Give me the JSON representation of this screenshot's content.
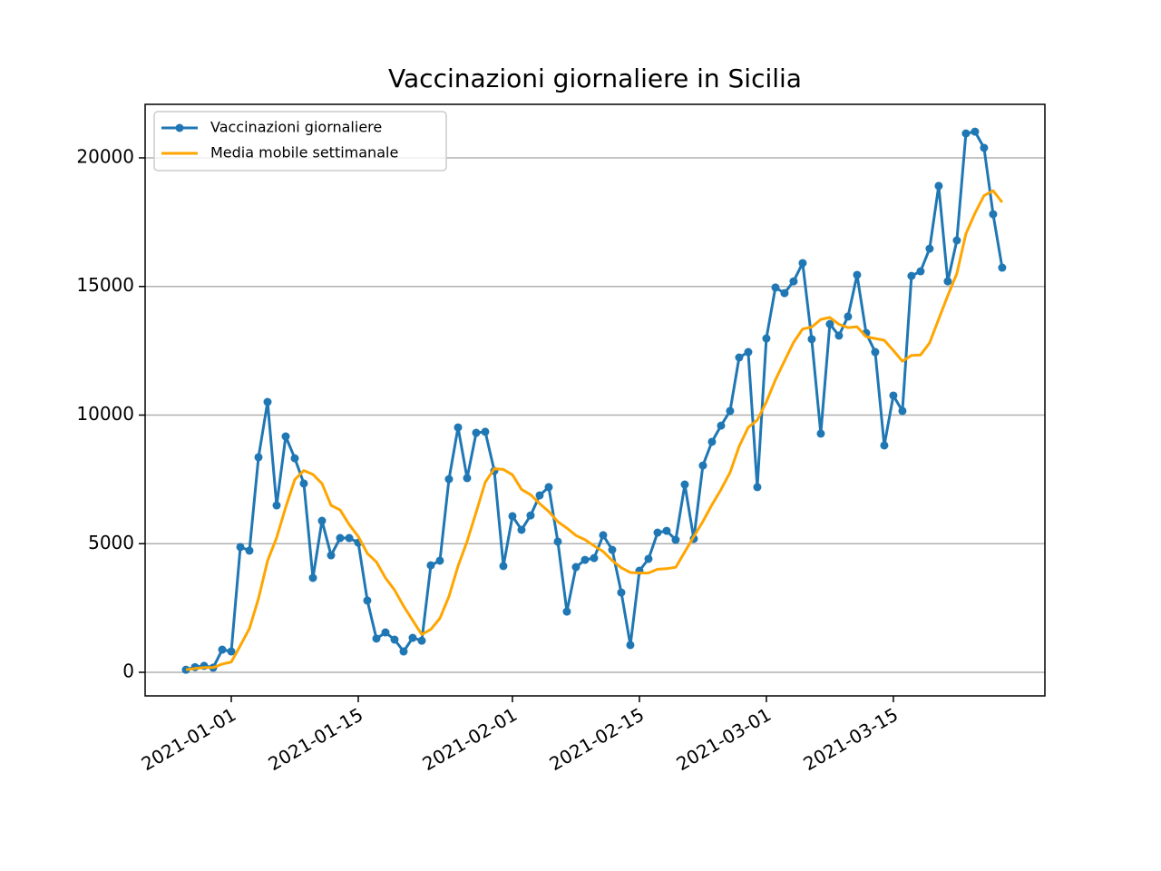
{
  "chart_data": {
    "type": "line",
    "title": "Vaccinazioni giornaliere in Sicilia",
    "x": [
      "2020-12-27",
      "2020-12-28",
      "2020-12-29",
      "2020-12-30",
      "2020-12-31",
      "2021-01-01",
      "2021-01-02",
      "2021-01-03",
      "2021-01-04",
      "2021-01-05",
      "2021-01-06",
      "2021-01-07",
      "2021-01-08",
      "2021-01-09",
      "2021-01-10",
      "2021-01-11",
      "2021-01-12",
      "2021-01-13",
      "2021-01-14",
      "2021-01-15",
      "2021-01-16",
      "2021-01-17",
      "2021-01-18",
      "2021-01-19",
      "2021-01-20",
      "2021-01-21",
      "2021-01-22",
      "2021-01-23",
      "2021-01-24",
      "2021-01-25",
      "2021-01-26",
      "2021-01-27",
      "2021-01-28",
      "2021-01-29",
      "2021-01-30",
      "2021-01-31",
      "2021-02-01",
      "2021-02-02",
      "2021-02-03",
      "2021-02-04",
      "2021-02-05",
      "2021-02-06",
      "2021-02-07",
      "2021-02-08",
      "2021-02-09",
      "2021-02-10",
      "2021-02-11",
      "2021-02-12",
      "2021-02-13",
      "2021-02-14",
      "2021-02-15",
      "2021-02-16",
      "2021-02-17",
      "2021-02-18",
      "2021-02-19",
      "2021-02-20",
      "2021-02-21",
      "2021-02-22",
      "2021-02-23",
      "2021-02-24",
      "2021-02-25",
      "2021-02-26",
      "2021-02-27",
      "2021-02-28",
      "2021-03-01",
      "2021-03-02",
      "2021-03-03",
      "2021-03-04",
      "2021-03-05",
      "2021-03-06",
      "2021-03-07",
      "2021-03-08",
      "2021-03-09",
      "2021-03-10",
      "2021-03-11",
      "2021-03-12",
      "2021-03-13",
      "2021-03-14",
      "2021-03-15",
      "2021-03-16",
      "2021-03-17",
      "2021-03-18",
      "2021-03-19",
      "2021-03-20",
      "2021-03-21",
      "2021-03-22",
      "2021-03-23",
      "2021-03-24",
      "2021-03-25",
      "2021-03-26",
      "2021-03-27"
    ],
    "series": [
      {
        "name": "Vaccinazioni giornaliere",
        "color": "#1f77b4",
        "marker": true,
        "values": [
          100,
          200,
          250,
          180,
          880,
          810,
          4870,
          4730,
          8360,
          10510,
          6490,
          9170,
          8320,
          7340,
          3670,
          5890,
          4550,
          5220,
          5220,
          5040,
          2790,
          1310,
          1550,
          1270,
          810,
          1340,
          1230,
          4160,
          4340,
          7510,
          9520,
          7550,
          9310,
          9350,
          7830,
          4130,
          6070,
          5540,
          6100,
          6880,
          7200,
          5080,
          2360,
          4090,
          4370,
          4440,
          5330,
          4760,
          3100,
          1060,
          3950,
          4410,
          5430,
          5500,
          5150,
          7300,
          5190,
          8040,
          8960,
          9590,
          10160,
          12240,
          12450,
          7200,
          12980,
          14960,
          14740,
          15200,
          15910,
          12950,
          9280,
          13540,
          13090,
          13830,
          15450,
          13190,
          12450,
          8820,
          10760,
          10160,
          15410,
          15590,
          16470,
          18910,
          15200,
          16790,
          20950,
          21020,
          20390,
          17810,
          15730
        ]
      },
      {
        "name": "Media mobile settimanale",
        "color": "#ffa500",
        "marker": false,
        "values": [
          100,
          150,
          183,
          183,
          322,
          403,
          1041,
          1703,
          2869,
          4334,
          5236,
          6420,
          7493,
          7846,
          7694,
          7341,
          6490,
          6309,
          5744,
          5276,
          4626,
          4289,
          3669,
          3200,
          2570,
          2016,
          1471,
          1667,
          2100,
          2951,
          4130,
          5093,
          6231,
          7391,
          7916,
          7886,
          7680,
          7111,
          6904,
          6557,
          6250,
          5857,
          5604,
          5321,
          5154,
          4917,
          4696,
          4347,
          4064,
          3879,
          3859,
          3864,
          4006,
          4030,
          4086,
          4686,
          5276,
          5860,
          6510,
          7104,
          7770,
          8783,
          9519,
          9806,
          10511,
          11369,
          12104,
          12824,
          13349,
          13420,
          13717,
          13797,
          13530,
          13400,
          13436,
          13047,
          12976,
          12910,
          12513,
          12094,
          12320,
          12340,
          12809,
          13731,
          14643,
          15504,
          17046,
          17847,
          18533,
          18724,
          18270
        ]
      }
    ],
    "xlim": [
      "2020-12-22T12:00:00Z",
      "2021-03-31T17:00:00Z"
    ],
    "xticks": [
      "2021-01-01",
      "2021-01-15",
      "2021-02-01",
      "2021-02-15",
      "2021-03-01",
      "2021-03-15"
    ],
    "ylim": [
      -917,
      22081
    ],
    "yticks": [
      0,
      5000,
      10000,
      15000,
      20000
    ],
    "grid": true,
    "legend": "upper left"
  }
}
